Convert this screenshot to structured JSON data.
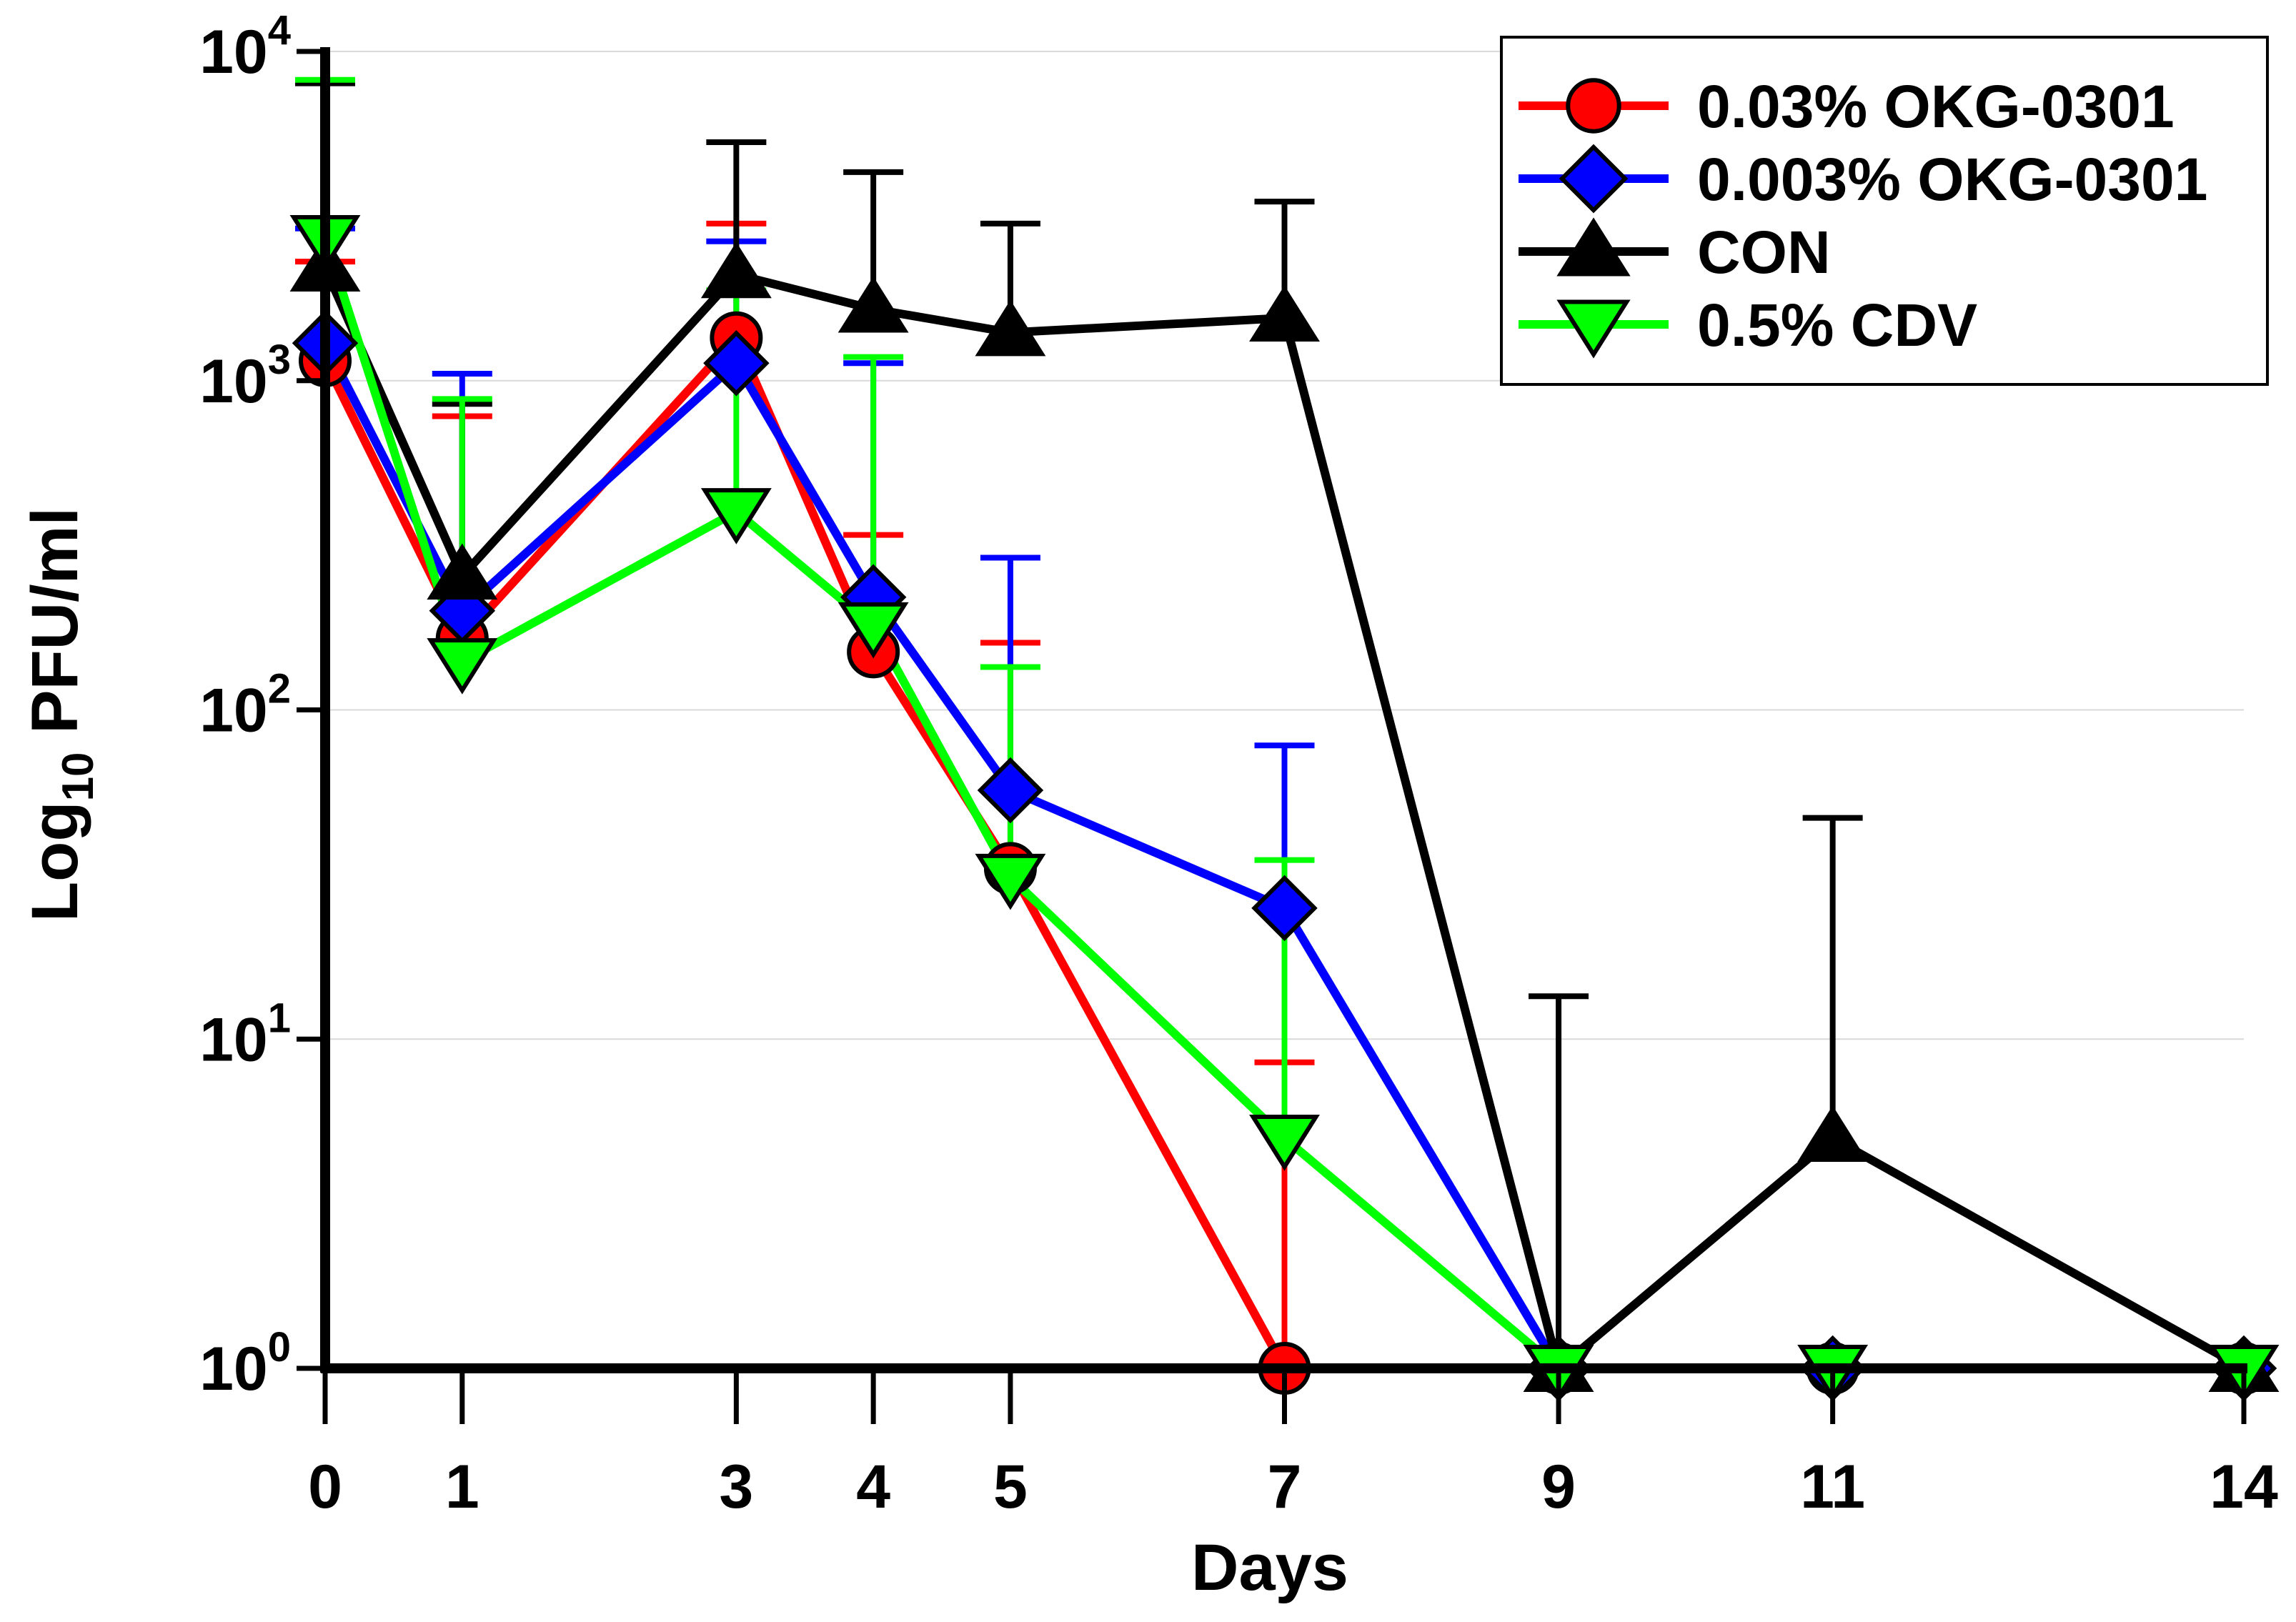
{
  "chart_data": {
    "type": "line",
    "title": "",
    "xlabel": "Days",
    "ylabel": {
      "base": "Log",
      "sub": "10",
      "rest": " PFU/ml"
    },
    "yscale": "log",
    "ylim": [
      1,
      10000
    ],
    "xlim": [
      0,
      14
    ],
    "x_ticks": [
      0,
      1,
      3,
      4,
      5,
      7,
      9,
      11,
      14
    ],
    "x_tick_labels": [
      "0",
      "1",
      "3",
      "4",
      "5",
      "7",
      "9",
      "11",
      "14"
    ],
    "y_ticks": [
      {
        "value": 1,
        "base": "10",
        "exp": "0"
      },
      {
        "value": 10,
        "base": "10",
        "exp": "1"
      },
      {
        "value": 100,
        "base": "10",
        "exp": "2"
      },
      {
        "value": 1000,
        "base": "10",
        "exp": "3"
      },
      {
        "value": 10000,
        "base": "10",
        "exp": "4"
      }
    ],
    "grid": "horizontal",
    "legend_position": "top-right",
    "series": [
      {
        "name": "0.03% OKG-0301",
        "color": "#ff0000",
        "marker": "circle",
        "x": [
          0,
          1,
          3,
          4,
          5,
          7,
          9,
          11,
          14
        ],
        "values": [
          1150,
          165,
          1350,
          150,
          33,
          1,
          1,
          1,
          1
        ],
        "error_upper": [
          2300,
          780,
          3000,
          340,
          160,
          8.5,
          null,
          null,
          null
        ]
      },
      {
        "name": "0.003% OKG-0301",
        "color": "#0000ff",
        "marker": "diamond",
        "x": [
          0,
          1,
          3,
          4,
          5,
          7,
          9,
          11,
          14
        ],
        "values": [
          1300,
          200,
          1130,
          220,
          57,
          25,
          1,
          1,
          1
        ],
        "error_upper": [
          2900,
          1050,
          2650,
          1130,
          290,
          78,
          null,
          null,
          null
        ]
      },
      {
        "name": "CON",
        "color": "#000000",
        "marker": "triangle-up",
        "x": [
          0,
          1,
          3,
          4,
          5,
          7,
          9,
          11,
          14
        ],
        "values": [
          2200,
          255,
          2100,
          1650,
          1400,
          1550,
          1,
          5,
          1
        ],
        "error_upper": [
          8000,
          850,
          5300,
          4300,
          3000,
          3500,
          13.5,
          47,
          null
        ]
      },
      {
        "name": "0.5% CDV",
        "color": "#00ff00",
        "marker": "triangle-down",
        "x": [
          0,
          1,
          3,
          4,
          5,
          7,
          9,
          11,
          14
        ],
        "values": [
          2700,
          140,
          400,
          180,
          31,
          5,
          1,
          1,
          1
        ],
        "error_upper": [
          8200,
          880,
          1880,
          1180,
          135,
          35,
          null,
          null,
          null
        ]
      }
    ]
  }
}
